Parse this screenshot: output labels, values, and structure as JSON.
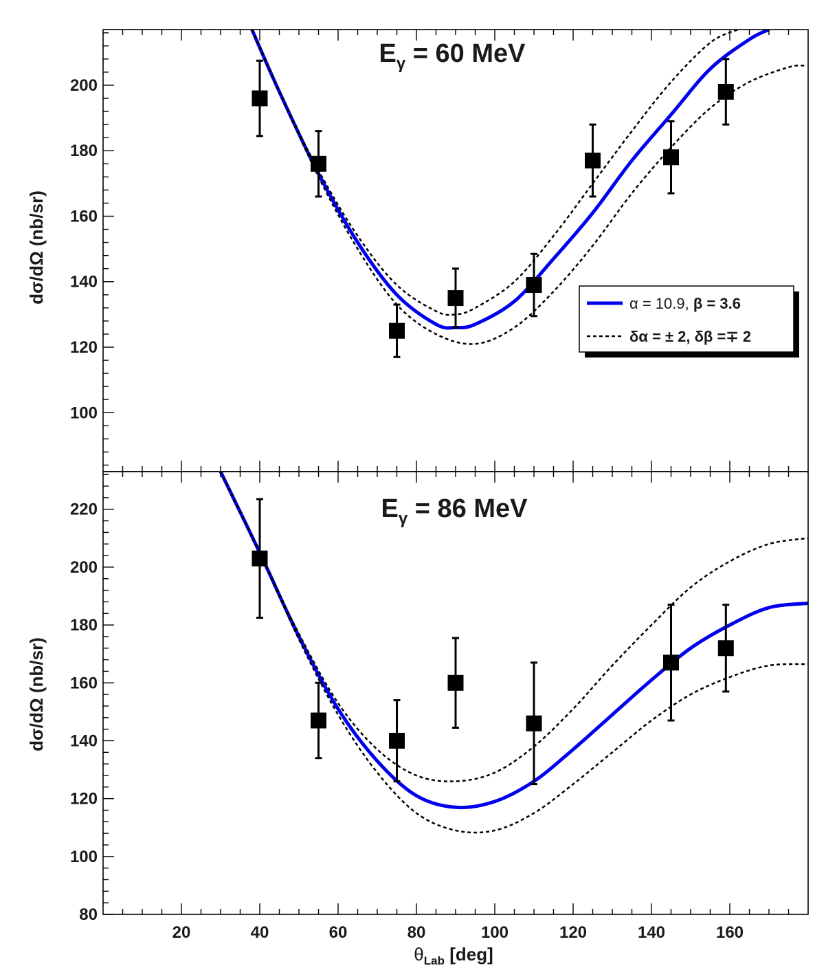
{
  "chart_data": [
    {
      "type": "scatter",
      "title": "E",
      "title_sub": "γ",
      "title_rest": " = 60 MeV",
      "ylabel": "dσ/dΩ (nb/sr)",
      "xlim": [
        0,
        180
      ],
      "ylim": [
        82,
        217
      ],
      "yticks": [
        100,
        120,
        140,
        160,
        180,
        200
      ],
      "points": [
        {
          "x": 40,
          "y": 196,
          "err": 11.5
        },
        {
          "x": 55,
          "y": 176,
          "err": 10
        },
        {
          "x": 75,
          "y": 125,
          "err": 8
        },
        {
          "x": 90,
          "y": 135,
          "err": 9
        },
        {
          "x": 110,
          "y": 139,
          "err": 9.5
        },
        {
          "x": 125,
          "y": 177,
          "err": 11
        },
        {
          "x": 145,
          "y": 178,
          "err": 11
        },
        {
          "x": 159,
          "y": 198,
          "err": 10
        }
      ],
      "curves": [
        {
          "style": "solid",
          "x": [
            38,
            45,
            55,
            65,
            75,
            85,
            90,
            95,
            105,
            115,
            125,
            135,
            145,
            155,
            165,
            170
          ],
          "y": [
            217,
            198,
            173,
            152,
            136,
            127,
            126,
            127,
            134,
            147,
            161,
            177,
            191,
            205,
            214,
            217
          ]
        },
        {
          "style": "dashed",
          "x": [
            38,
            45,
            55,
            65,
            75,
            85,
            90,
            95,
            105,
            115,
            125,
            135,
            145,
            155,
            162
          ],
          "y": [
            217,
            198,
            174,
            154,
            139,
            131,
            130,
            132,
            140,
            154,
            170,
            186,
            201,
            213,
            217
          ]
        },
        {
          "style": "dashed",
          "x": [
            38,
            45,
            55,
            65,
            75,
            85,
            95,
            105,
            115,
            125,
            135,
            145,
            155,
            165,
            175,
            179
          ],
          "y": [
            217,
            198,
            172,
            150,
            133,
            124,
            121,
            126,
            137,
            151,
            167,
            181,
            193,
            201,
            205.5,
            206
          ]
        }
      ],
      "legend": {
        "solid_alpha": "α = 10.9, ",
        "solid_beta": "β = 3.6",
        "dashed_alpha": "δα = ± 2, ",
        "dashed_beta": "δβ =∓ 2"
      }
    },
    {
      "type": "scatter",
      "title": "E",
      "title_sub": "γ",
      "title_rest": " = 86 MeV",
      "ylabel": "dσ/dΩ (nb/sr)",
      "xlabel_main": "θ",
      "xlabel_sub": "Lab",
      "xlabel_rest": " [deg]",
      "xlim": [
        0,
        180
      ],
      "ylim": [
        80,
        233
      ],
      "xticks": [
        20,
        40,
        60,
        80,
        100,
        120,
        140,
        160
      ],
      "yticks": [
        80,
        100,
        120,
        140,
        160,
        180,
        200,
        220
      ],
      "points": [
        {
          "x": 40,
          "y": 203,
          "err": 20.5
        },
        {
          "x": 55,
          "y": 147,
          "err": 13
        },
        {
          "x": 75,
          "y": 140,
          "err": 14
        },
        {
          "x": 90,
          "y": 160,
          "err": 15.5
        },
        {
          "x": 110,
          "y": 146,
          "err": 21
        },
        {
          "x": 145,
          "y": 167,
          "err": 20
        },
        {
          "x": 159,
          "y": 172,
          "err": 15
        }
      ],
      "curves": [
        {
          "style": "solid",
          "x": [
            30,
            40,
            50,
            60,
            70,
            80,
            90,
            100,
            110,
            120,
            130,
            140,
            150,
            160,
            170,
            180
          ],
          "y": [
            233,
            205,
            176,
            151,
            133,
            121,
            117,
            119,
            126,
            137,
            149,
            161,
            172,
            180,
            186,
            187.5
          ]
        },
        {
          "style": "dashed",
          "x": [
            30,
            40,
            50,
            60,
            70,
            80,
            90,
            100,
            110,
            120,
            130,
            140,
            150,
            160,
            170,
            180
          ],
          "y": [
            233,
            205,
            177,
            153,
            137,
            128,
            126,
            129,
            138,
            151,
            166,
            180,
            193,
            202,
            208,
            210
          ]
        },
        {
          "style": "dashed",
          "x": [
            30,
            40,
            50,
            60,
            70,
            80,
            90,
            100,
            110,
            120,
            130,
            140,
            150,
            160,
            170,
            180
          ],
          "y": [
            233,
            205,
            175,
            149,
            129,
            115,
            109,
            109,
            115,
            125,
            136,
            147,
            156,
            162,
            166,
            166.5
          ]
        }
      ]
    }
  ],
  "colors": {
    "solid_curve": "#0000ee",
    "dashed_curve": "#000000",
    "markers": "#000000",
    "frame": "#000000"
  }
}
